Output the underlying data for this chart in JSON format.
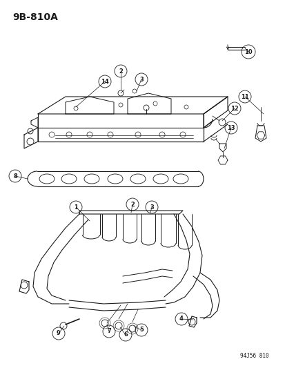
{
  "title": "9B-810A",
  "watermark": "94J56 810",
  "bg_color": "#ffffff",
  "line_color": "#1a1a1a",
  "title_fontsize": 10,
  "watermark_fontsize": 5.5,
  "fig_width": 4.14,
  "fig_height": 5.33,
  "dpi": 100
}
